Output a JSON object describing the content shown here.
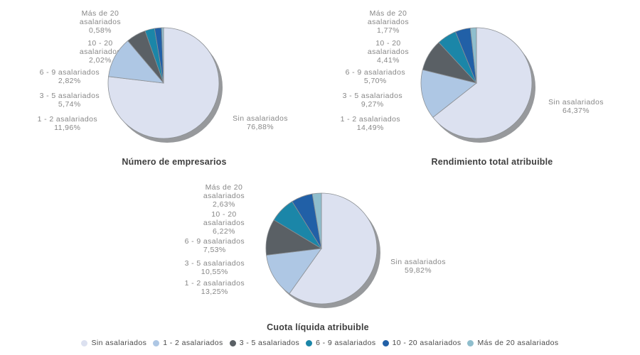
{
  "palette": [
    "#dce1f0",
    "#aec7e4",
    "#5a6065",
    "#1b86a8",
    "#2160a7",
    "#8fbecd"
  ],
  "style": {
    "shadow_color": "#97999c",
    "slice_stroke": "#8c9094",
    "label_color": "#878787",
    "title_color": "#3f3f3f",
    "background": "#ffffff"
  },
  "chart_data": [
    {
      "type": "pie",
      "title": "Número de empresarios",
      "unit": "%",
      "start_angle": "top",
      "direction": "clockwise",
      "labels": [
        "Sin asalariados",
        "1 - 2 asalariados",
        "3 - 5 asalariados",
        "6 - 9 asalariados",
        "10 - 20 asalariados",
        "Más de 20 asalariados"
      ],
      "values": [
        76.88,
        11.96,
        5.74,
        2.82,
        2.02,
        0.58
      ],
      "value_labels": [
        "76,88%",
        "11,96%",
        "5,74%",
        "2,82%",
        "2,02%",
        "0,58%"
      ],
      "callouts_left": [
        "Más de 20\nasalariados\n0,58%",
        "10 - 20\nasalariados\n2,02%",
        "6 - 9 asalariados\n2,82%",
        "3 - 5 asalariados\n5,74%",
        "1 - 2 asalariados\n11,96%"
      ],
      "callout_right": "Sin asalariados\n76,88%"
    },
    {
      "type": "pie",
      "title": "Rendimiento total atribuible",
      "unit": "%",
      "start_angle": "top",
      "direction": "clockwise",
      "labels": [
        "Sin asalariados",
        "1 - 2 asalariados",
        "3 - 5 asalariados",
        "6 - 9 asalariados",
        "10 - 20 asalariados",
        "Más de 20 asalariados"
      ],
      "values": [
        64.37,
        14.49,
        9.27,
        5.7,
        4.41,
        1.77
      ],
      "value_labels": [
        "64,37%",
        "14,49%",
        "9,27%",
        "5,70%",
        "4,41%",
        "1,77%"
      ],
      "callouts_left": [
        "Más de 20\nasalariados\n1,77%",
        "10 - 20\nasalariados\n4,41%",
        "6 - 9 asalariados\n5,70%",
        "3 - 5 asalariados\n9,27%",
        "1 - 2 asalariados\n14,49%"
      ],
      "callout_right": "Sin asalariados\n64,37%"
    },
    {
      "type": "pie",
      "title": "Cuota líquida atribuible",
      "unit": "%",
      "start_angle": "top",
      "direction": "clockwise",
      "labels": [
        "Sin asalariados",
        "1 - 2 asalariados",
        "3 - 5 asalariados",
        "6 - 9 asalariados",
        "10 - 20 asalariados",
        "Más de 20 asalariados"
      ],
      "values": [
        59.82,
        13.25,
        10.55,
        7.53,
        6.22,
        2.63
      ],
      "value_labels": [
        "59,82%",
        "13,25%",
        "10,55%",
        "7,53%",
        "6,22%",
        "2,63%"
      ],
      "callouts_left": [
        "Más de 20\nasalariados\n2,63%",
        "10 - 20\nasalariados\n6,22%",
        "6 - 9 asalariados\n7,53%",
        "3 - 5 asalariados\n10,55%",
        "1 - 2 asalariados\n13,25%"
      ],
      "callout_right": "Sin asalariados\n59,82%"
    }
  ],
  "legend": {
    "position": "bottom",
    "items": [
      {
        "label": "Sin asalariados",
        "color": "#dce1f0"
      },
      {
        "label": "1 - 2 asalariados",
        "color": "#aec7e4"
      },
      {
        "label": "3 - 5 asalariados",
        "color": "#5a6065"
      },
      {
        "label": "6 - 9 asalariados",
        "color": "#1b86a8"
      },
      {
        "label": "10 - 20 asalariados",
        "color": "#2160a7"
      },
      {
        "label": "Más de 20 asalariados",
        "color": "#8fbecd"
      }
    ]
  }
}
